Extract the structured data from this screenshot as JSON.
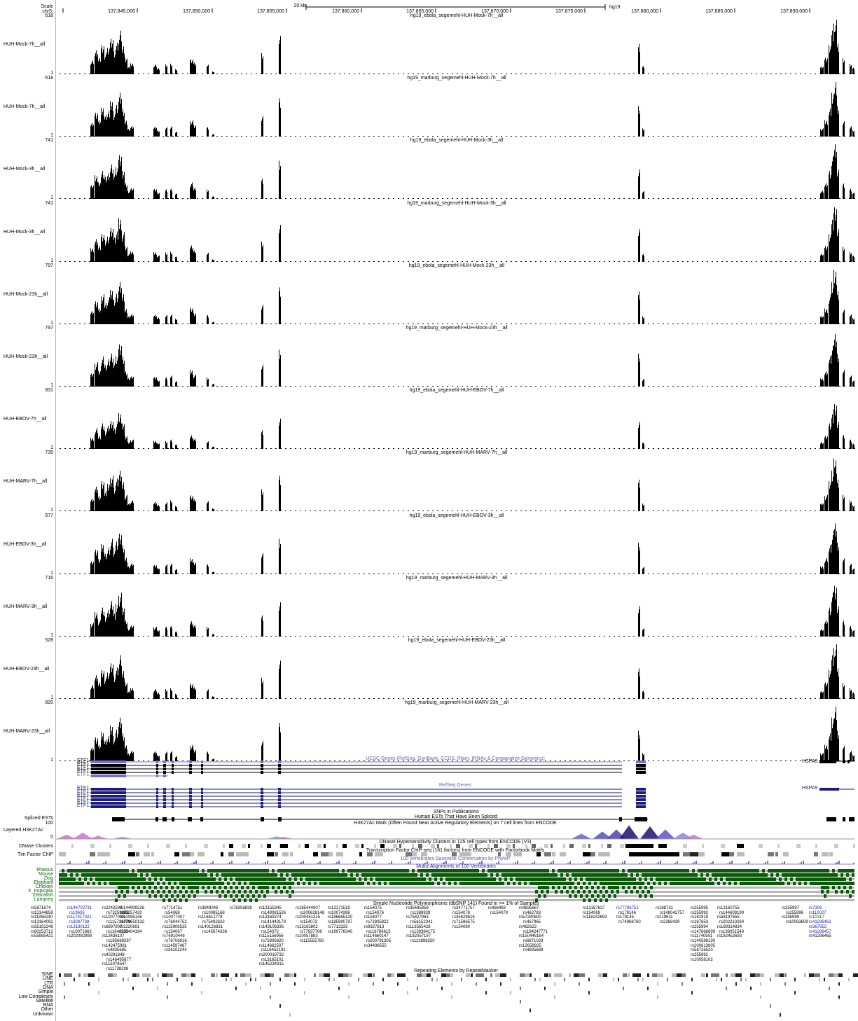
{
  "ruler": {
    "scale_label": "Scale",
    "chrom_label": "chr5:",
    "scale_bar": "20 kb",
    "assembly": "hg19",
    "ticks": [
      "137,845,000",
      "137,850,000",
      "137,855,000",
      "137,860,000",
      "137,865,000",
      "137,870,000",
      "137,875,000",
      "137,880,000",
      "137,885,000",
      "137,890,000"
    ]
  },
  "signal_tracks": [
    {
      "label": "HUH-Mock-7h__all",
      "title": "hg19_ebola_segemehl-HUH-Mock-7h__all",
      "max": "618",
      "min": "1"
    },
    {
      "label": "HUH-Mock-7h__all",
      "title": "hg19_marburg_segemehl-HUH-Mock-7h__all",
      "max": "618",
      "min": "1"
    },
    {
      "label": "HUH-Mock-3h__all",
      "title": "hg19_ebola_segemehl-HUH-Mock-3h__all",
      "max": "741",
      "min": "1"
    },
    {
      "label": "HUH-Mock-3h__all",
      "title": "hg19_marburg_segemehl-HUH-Mock-3h__all",
      "max": "741",
      "min": "1"
    },
    {
      "label": "HUH-Mock-23h__all",
      "title": "hg19_ebola_segemehl-HUH-Mock-23h__all",
      "max": "797",
      "min": "1"
    },
    {
      "label": "HUH-Mock-23h__all",
      "title": "hg19_marburg_segemehl-HUH-Mock-23h__all",
      "max": "797",
      "min": "1"
    },
    {
      "label": "HUH-EBOV-7h__all",
      "title": "hg19_ebola_segemehl-HUH-EBOV-7h__all",
      "max": "931",
      "min": "1"
    },
    {
      "label": "HUH-MARV-7h__all",
      "title": "hg19_marburg_segemehl-HUH-MARV-7h__all",
      "max": "735",
      "min": "1"
    },
    {
      "label": "HUH-EBOV-3h__all",
      "title": "hg19_ebola_segemehl-HUH-EBOV-3h__all",
      "max": "577",
      "min": "1"
    },
    {
      "label": "HUH-MARV-3h__all",
      "title": "hg19_marburg_segemehl-HUH-MARV-3h__all",
      "max": "716",
      "min": "1"
    },
    {
      "label": "HUH-EBOV-23h__all",
      "title": "hg19_ebola_segemehl-HUH-EBOV-23h__all",
      "max": "528",
      "min": "1"
    },
    {
      "label": "HUH-MARV-23h__all",
      "title": "hg19_marburg_segemehl-HUH-MARV-23h__all",
      "max": "820",
      "min": "1"
    }
  ],
  "ucsc_genes": {
    "title": "UCSC Genes (RefSeq, GenBank, CCDS, Rfam, tRNAs & Comparative Genomics)",
    "left_labels": [
      "ETF1",
      "ETF1",
      "ETF1",
      "ETF1",
      "ETF1"
    ],
    "right_label": "HSPA9"
  },
  "refseq_genes": {
    "title": "RefSeq Genes",
    "left_labels": [
      "ETF1",
      "ETF1",
      "ETF1",
      "ETF1",
      "ETF1",
      "ETF1"
    ],
    "right_label": "HSPA9"
  },
  "snps_pub_title": "SNPs in Publications",
  "spliced_ests": {
    "label": "Spliced ESTs",
    "title": "Human ESTs That Have Been Spliced"
  },
  "h3k27ac": {
    "label": "Layered H3K27Ac",
    "title": "H3K27Ac Mark (Often Found Near Active Regulatory Elements) on 7 cell lines from ENCODE",
    "max": "100",
    "min": "0"
  },
  "dnase": {
    "label": "DNase Clusters",
    "title": "DNaseI Hypersensitivity Clusters in 125 cell types from ENCODE (V3)"
  },
  "txn": {
    "label": "Txn Factor ChIP",
    "title": "Transcription Factor ChIP-seq (161 factors) from ENCODE with Factorbook Motifs"
  },
  "cons_title": "100 vertebrates Basewise Conservation by PhyloP",
  "multiz": {
    "title": "Multiz Alignments of 100 Vertebrates",
    "species": [
      "Rhesus",
      "Mouse",
      "Dog",
      "Elephant",
      "Chicken",
      "X_tropicalis",
      "Zebrafish",
      "Lamprey"
    ]
  },
  "snp141": {
    "title": "Simple Nucleotide Polymorphisms (dbSNP 141) Found in >= 1% of Samples",
    "columns": [
      {
        "items": [
          "rs5871674",
          "rs13144859",
          "rs11956240",
          "rs13164092",
          "rs35191349",
          "rs60253712",
          "rs55985421"
        ]
      },
      {
        "items": [
          "rs144702731",
          "rs19635",
          "rs117417021",
          "rs3087738",
          "rs13180122",
          "rs10071863",
          "rs202092998"
        ],
        "blue": [
          0,
          1,
          2,
          3,
          4
        ]
      },
      {
        "items": [
          "rs2242599",
          "rs73259889",
          "rs10077025",
          "rs115726779",
          "rs6897807",
          "rs11648533",
          "rs13436107",
          "rs185688297",
          "rs142475981",
          "rs4835685",
          "rs40291848",
          "rs146495877",
          "rs115078547",
          "rs11738208"
        ]
      },
      {
        "items": [
          "rs144909226",
          "rs35257420",
          "rs10085146",
          "rs199650132",
          "rs3220691",
          "rs35404194"
        ]
      },
      {
        "items": [
          "rs7714751",
          "rs54068",
          "rs10077407",
          "rs76044752",
          "rs115908535",
          "rs154067",
          "rs76910446",
          "rs78706916",
          "rs114597467",
          "rs36102244"
        ]
      },
      {
        "items": [
          "rs3849046",
          "rs10085168",
          "rs116612778",
          "rs75492622",
          "rs140126831",
          "rs145674336"
        ]
      },
      {
        "items": [
          "rs76356838"
        ]
      },
      {
        "items": [
          "rs13155345",
          "rs149081526",
          "rs13169274",
          "rs141443179",
          "rs143106336",
          "rs154072",
          "rs115156956",
          "rs72805820",
          "rs114662507",
          "rs116452192",
          "rs200019732",
          "rs13165101",
          "rs145234315"
        ]
      },
      {
        "items": [
          "rs185444907",
          "rs200628148",
          "rs200451315",
          "rs154073",
          "rs13165802",
          "rs77937786",
          "rs10057883",
          "rs115555780"
        ]
      },
      {
        "items": [
          "rs13171519",
          "rs10074396",
          "rs186665120",
          "rs185990787",
          "rs7713333",
          "rs199776340"
        ]
      },
      {
        "items": [
          "rs154075",
          "rs154076",
          "rs154077",
          "rs72805822",
          "rs9327813",
          "rs116786615",
          "rs114660147",
          "rs200791305",
          "rs34498555"
        ]
      },
      {
        "items": [
          "rs35485859",
          "rs1388928",
          "rs75827963",
          "rs56152341",
          "rs113565428",
          "rs139384175",
          "rs182057197",
          "rs113898250"
        ]
      },
      {
        "items": [
          "rs34771757",
          "rs154078",
          "rs34629616",
          "rs71596575",
          "rs154080"
        ]
      },
      {
        "items": [
          "rs466483",
          "rs154079"
        ]
      },
      {
        "items": [
          "rs4835687",
          "rs462783",
          "rs57280600",
          "rs467965",
          "rs462623",
          "rs184247771",
          "rs150446164",
          "rs6871028",
          "rs12658925",
          "rs4835688"
        ]
      },
      {
        "items": [
          "rs13187637",
          "rs154069",
          "rs116242693"
        ]
      },
      {
        "items": [
          "rs77796751",
          "rs178146",
          "rs178145",
          "rs74968760"
        ],
        "blue": [
          0
        ]
      },
      {
        "items": [
          "rs188731",
          "rs148042757",
          "rs219611",
          "rs2268439"
        ]
      },
      {
        "items": [
          "rs255995",
          "rs255993",
          "rs181919",
          "rs187653",
          "rs255994",
          "rs147866699",
          "rs11740501",
          "rs140598130",
          "rs200613805",
          "rs56726520",
          "rs255992",
          "rs10058102"
        ]
      },
      {
        "items": [
          "rs13160755",
          "rs144609190",
          "rs58197655",
          "rs202210264",
          "rs189314834",
          "rs138051540",
          "rs182452693"
        ]
      },
      {
        "items": [
          "rs255997",
          "rs255996",
          "rs255999",
          "rs10063609"
        ]
      },
      {
        "items": [
          "rs7306",
          "rs110027",
          "rs10317",
          "rs41296461",
          "rs367953",
          "rs41296457",
          "rs41296465"
        ],
        "blue": [
          0,
          1,
          3,
          4,
          5
        ],
        "green": [
          2
        ]
      }
    ]
  },
  "repeatmasker": {
    "title": "Repeating Elements by RepeatMasker",
    "classes": [
      "SINE",
      "LINE",
      "LTR",
      "DNA",
      "Simple",
      "Low Complexity",
      "Satellite",
      "RNA",
      "Other",
      "Unknown"
    ]
  }
}
